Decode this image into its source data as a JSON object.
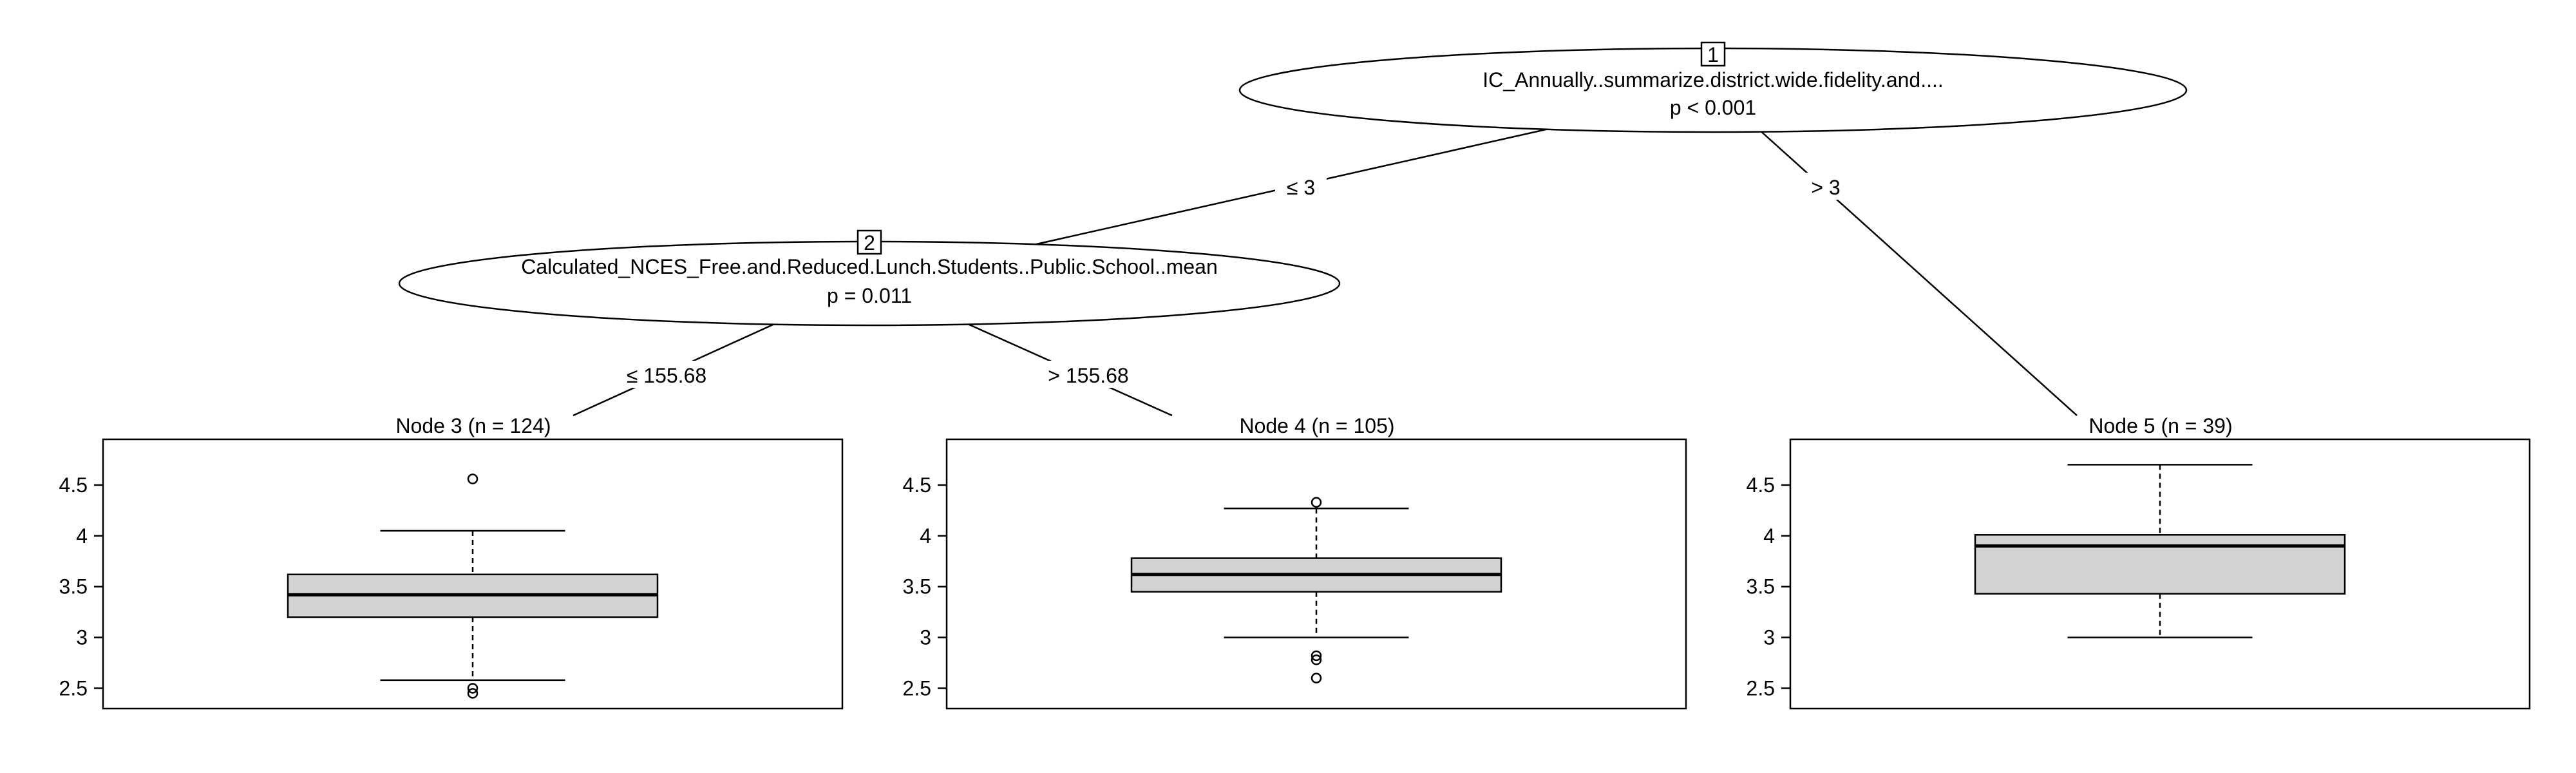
{
  "inner_nodes": [
    {
      "id": "1",
      "variable": "IC_Annually..summarize.district.wide.fidelity.and....",
      "p_value": "p < 0.001"
    },
    {
      "id": "2",
      "variable": "Calculated_NCES_Free.and.Reduced.Lunch.Students..Public.School..mean",
      "p_value": "p = 0.011"
    }
  ],
  "edges": [
    {
      "from": "1",
      "to": "2",
      "label": "≤ 3"
    },
    {
      "from": "1",
      "to": "5",
      "label": "> 3"
    },
    {
      "from": "2",
      "to": "3",
      "label": "≤ 155.68"
    },
    {
      "from": "2",
      "to": "4",
      "label": "> 155.68"
    }
  ],
  "terminal_nodes": [
    {
      "id": "3",
      "title": "Node 3 (n = 124)"
    },
    {
      "id": "4",
      "title": "Node 4 (n = 105)"
    },
    {
      "id": "5",
      "title": "Node 5 (n = 39)"
    }
  ],
  "chart_data": {
    "type": "boxplot",
    "ylim": [
      2.3,
      4.95
    ],
    "yticks": [
      "2.5",
      "3",
      "3.5",
      "4",
      "4.5"
    ],
    "series": [
      {
        "node": "3",
        "whisker_low": 2.58,
        "q1": 3.2,
        "median": 3.42,
        "q3": 3.62,
        "whisker_high": 4.05,
        "outliers": [
          4.56,
          2.5,
          2.45
        ]
      },
      {
        "node": "4",
        "whisker_low": 3.0,
        "q1": 3.45,
        "median": 3.62,
        "q3": 3.78,
        "whisker_high": 4.27,
        "outliers": [
          4.33,
          2.82,
          2.78,
          2.6
        ]
      },
      {
        "node": "5",
        "whisker_low": 3.0,
        "q1": 3.43,
        "median": 3.9,
        "q3": 4.01,
        "whisker_high": 4.7,
        "outliers": []
      }
    ]
  }
}
